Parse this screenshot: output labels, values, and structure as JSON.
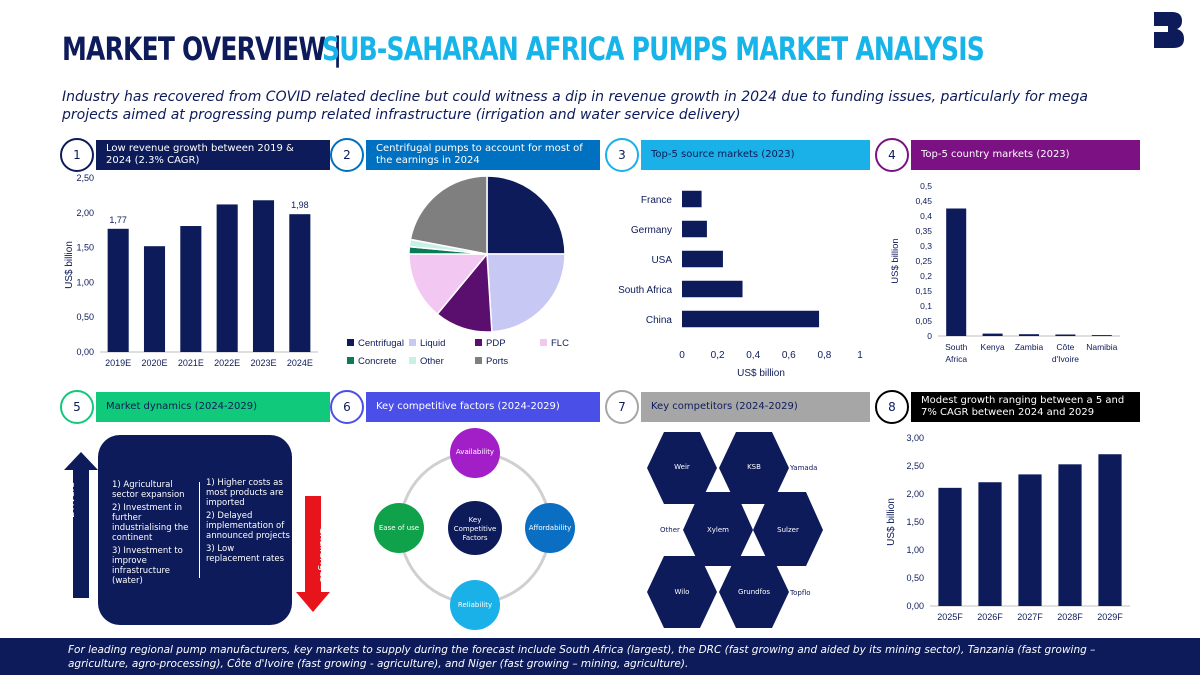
{
  "header": {
    "title_a": "MARKET OVERVIEW |",
    "title_b": "SUB-SAHARAN AFRICA PUMPS MARKET ANALYSIS",
    "subtitle": "Industry has recovered from COVID related decline but could witness a dip in revenue growth in 2024 due to funding issues, particularly for mega projects aimed at progressing pump related infrastructure (irrigation and water service delivery)"
  },
  "panels": [
    {
      "num": "1",
      "label": "Low revenue growth between 2019 & 2024 (2.3% CAGR)",
      "color": "#0d1b5a"
    },
    {
      "num": "2",
      "label": "Centrifugal pumps to account for most of the earnings in 2024",
      "color": "#0070c0"
    },
    {
      "num": "3",
      "label": "Top-5 source markets (2023)",
      "color": "#1ab1e8"
    },
    {
      "num": "4",
      "label": "Top-5 country markets (2023)",
      "color": "#7b1182"
    },
    {
      "num": "5",
      "label": "Market dynamics (2024-2029)",
      "color": "#10c97a"
    },
    {
      "num": "6",
      "label": "Key competitive factors (2024-2029)",
      "color": "#4a4fe8"
    },
    {
      "num": "7",
      "label": "Key competitors (2024-2029)",
      "color": "#a6a6a6"
    },
    {
      "num": "8",
      "label": "Modest growth ranging between a 5 and 7% CAGR between 2024 and 2029",
      "color": "#000000"
    }
  ],
  "chart_data": [
    {
      "id": "revenue_2019_2024",
      "type": "bar",
      "categories": [
        "2019E",
        "2020E",
        "2021E",
        "2022E",
        "2023E",
        "2024E"
      ],
      "values": [
        1.77,
        1.52,
        1.81,
        2.12,
        2.18,
        1.98
      ],
      "data_labels": {
        "0": "1,77",
        "5": "1,98"
      },
      "ylabel": "US$ billion",
      "ylim": [
        0,
        2.5
      ],
      "yticks": [
        "0,00",
        "0,50",
        "1,00",
        "1,50",
        "2,00",
        "2,50"
      ],
      "color": "#0d1b5a"
    },
    {
      "id": "pump_types_2024",
      "type": "pie",
      "categories": [
        "Centrifugal",
        "Liquid",
        "PDP",
        "FLC",
        "Concrete",
        "Other",
        "Ports"
      ],
      "values": [
        25,
        24,
        12,
        14,
        1.5,
        1.5,
        22
      ],
      "colors": [
        "#0d1b5a",
        "#c8c8f5",
        "#5a0e6e",
        "#f2c8f2",
        "#0b7a56",
        "#c8f0e6",
        "#7f7f7f"
      ],
      "legend": "bottom"
    },
    {
      "id": "source_markets_2023",
      "type": "bar",
      "orientation": "horizontal",
      "categories": [
        "France",
        "Germany",
        "USA",
        "South Africa",
        "China"
      ],
      "values": [
        0.11,
        0.14,
        0.23,
        0.34,
        0.77
      ],
      "xlabel": "US$ billion",
      "xlim": [
        0,
        1
      ],
      "xticks": [
        "0",
        "0,2",
        "0,4",
        "0,6",
        "0,8",
        "1"
      ],
      "color": "#0d1b5a"
    },
    {
      "id": "country_markets_2023",
      "type": "bar",
      "categories": [
        "South Africa",
        "Kenya",
        "Zambia",
        "Côte d'Ivoire",
        "Namibia"
      ],
      "values": [
        0.425,
        0.008,
        0.006,
        0.005,
        0.003
      ],
      "ylabel": "US$ billion",
      "ylim": [
        0,
        0.5
      ],
      "yticks": [
        "0",
        "0,05",
        "0,1",
        "0,15",
        "0,2",
        "0,25",
        "0,3",
        "0,35",
        "0,4",
        "0,45",
        "0,5"
      ],
      "color": "#0d1b5a"
    },
    {
      "id": "forecast_2025_2029",
      "type": "bar",
      "categories": [
        "2025F",
        "2026F",
        "2027F",
        "2028F",
        "2029F"
      ],
      "values": [
        2.11,
        2.21,
        2.35,
        2.53,
        2.71
      ],
      "ylabel": "US$ billion",
      "ylim": [
        0,
        3
      ],
      "yticks": [
        "0,00",
        "0,50",
        "1,00",
        "1,50",
        "2,00",
        "2,50",
        "3,00"
      ],
      "color": "#0d1b5a"
    }
  ],
  "dynamics": {
    "drivers_label": "Drivers",
    "challenges_label": "Challenges",
    "drivers": [
      "1) Agricultural sector expansion",
      "2) Investment in further industrialising the continent",
      "3) Investment to improve infrastructure (water)"
    ],
    "challenges": [
      "1) Higher costs as most products are imported",
      "2) Delayed implementation of announced projects",
      "3) Low replacement rates"
    ]
  },
  "factors": {
    "center": "Key Competitive Factors",
    "top": "Availability",
    "right": "Affordability",
    "bottom": "Reliability",
    "left": "Ease of use"
  },
  "competitors": {
    "hexes": [
      "Weir",
      "KSB",
      "Xylem",
      "Sulzer",
      "Wilo",
      "Grundfos"
    ],
    "outside": [
      "Yamada",
      "Other",
      "Topflo"
    ]
  },
  "footer": "For leading regional pump manufacturers, key markets to supply during the forecast include South Africa (largest), the DRC (fast growing and aided by its mining sector), Tanzania (fast growing – agriculture, agro-processing), Côte d'Ivoire (fast growing - agriculture), and Niger (fast growing – mining, agriculture)."
}
